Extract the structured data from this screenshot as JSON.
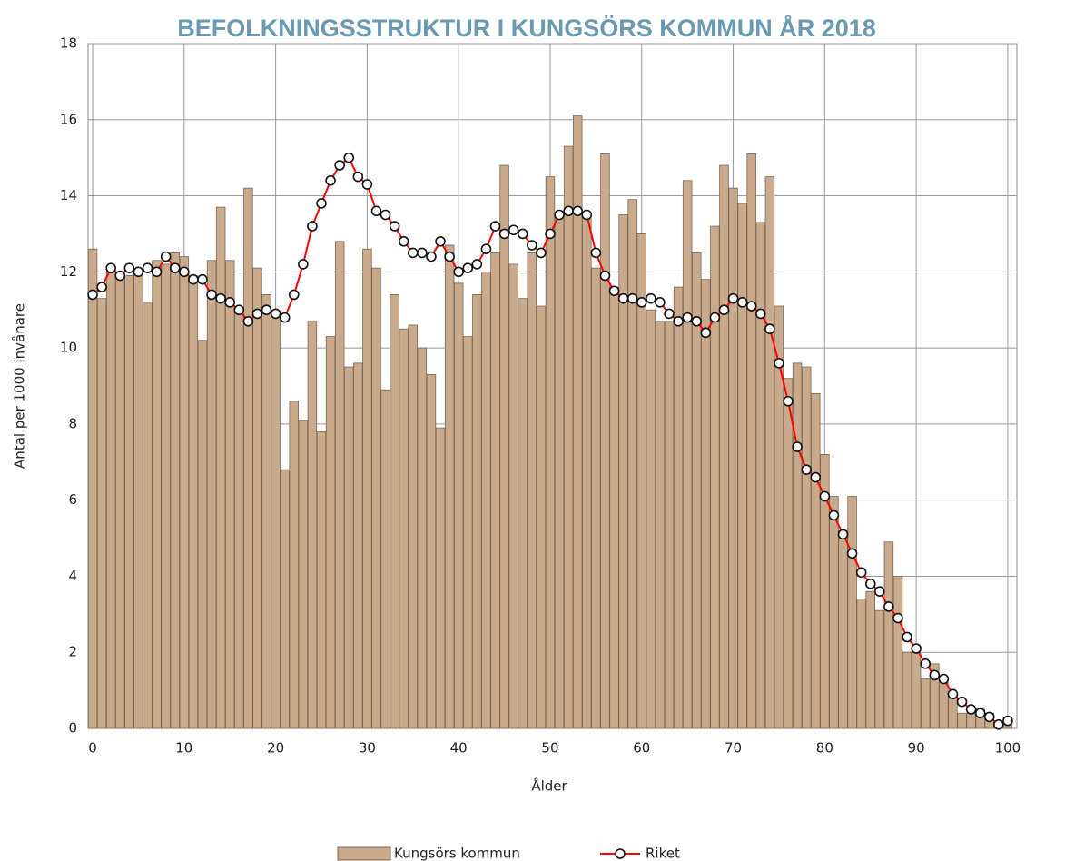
{
  "chart_data": {
    "type": "bar",
    "title": "BEFOLKNINGSSTRUKTUR I KUNGSÖRS KOMMUN ÅR 2018",
    "x_label": "Ålder",
    "y_label": "Antal per 1000 invånare",
    "x": [
      0,
      1,
      2,
      3,
      4,
      5,
      6,
      7,
      8,
      9,
      10,
      11,
      12,
      13,
      14,
      15,
      16,
      17,
      18,
      19,
      20,
      21,
      22,
      23,
      24,
      25,
      26,
      27,
      28,
      29,
      30,
      31,
      32,
      33,
      34,
      35,
      36,
      37,
      38,
      39,
      40,
      41,
      42,
      43,
      44,
      45,
      46,
      47,
      48,
      49,
      50,
      51,
      52,
      53,
      54,
      55,
      56,
      57,
      58,
      59,
      60,
      61,
      62,
      63,
      64,
      65,
      66,
      67,
      68,
      69,
      70,
      71,
      72,
      73,
      74,
      75,
      76,
      77,
      78,
      79,
      80,
      81,
      82,
      83,
      84,
      85,
      86,
      87,
      88,
      89,
      90,
      91,
      92,
      93,
      94,
      95,
      96,
      97,
      98,
      99,
      100
    ],
    "series": [
      {
        "name": "Kungsörs kommun",
        "type": "bar",
        "color": "#c9aa8c",
        "values": [
          12.6,
          11.3,
          12.1,
          12.0,
          11.9,
          12.0,
          11.2,
          12.3,
          12.2,
          12.5,
          12.4,
          11.9,
          10.2,
          12.3,
          13.7,
          12.3,
          11.0,
          14.2,
          12.1,
          11.4,
          10.9,
          6.8,
          8.6,
          8.1,
          10.7,
          7.8,
          10.3,
          12.8,
          9.5,
          9.6,
          12.6,
          12.1,
          8.9,
          11.4,
          10.5,
          10.6,
          10.0,
          9.3,
          7.9,
          12.7,
          11.7,
          10.3,
          11.4,
          12.0,
          12.5,
          14.8,
          12.2,
          11.3,
          12.5,
          11.1,
          14.5,
          13.5,
          15.3,
          16.1,
          13.5,
          12.1,
          15.1,
          11.6,
          13.5,
          13.9,
          13.0,
          11.0,
          10.7,
          10.7,
          11.6,
          14.4,
          12.5,
          11.8,
          13.2,
          14.8,
          14.2,
          13.8,
          15.1,
          13.3,
          14.5,
          11.1,
          9.2,
          9.6,
          9.5,
          8.8,
          7.2,
          6.1,
          5.2,
          6.1,
          3.4,
          3.6,
          3.1,
          4.9,
          4.0,
          2.0,
          2.0,
          1.3,
          1.7,
          1.3,
          0.8,
          0.4,
          0.4,
          0.5,
          0.4,
          0.2,
          0.3
        ]
      },
      {
        "name": "Riket",
        "type": "line",
        "color": "#ff0000",
        "values": [
          11.4,
          11.6,
          12.1,
          11.9,
          12.1,
          12.0,
          12.1,
          12.0,
          12.4,
          12.1,
          12.0,
          11.8,
          11.8,
          11.4,
          11.3,
          11.2,
          11.0,
          10.7,
          10.9,
          11.0,
          10.9,
          10.8,
          11.4,
          12.2,
          13.2,
          13.8,
          14.4,
          14.8,
          15.0,
          14.5,
          14.3,
          13.6,
          13.5,
          13.2,
          12.8,
          12.5,
          12.5,
          12.4,
          12.8,
          12.4,
          12.0,
          12.1,
          12.2,
          12.6,
          13.2,
          13.0,
          13.1,
          13.0,
          12.7,
          12.5,
          13.0,
          13.5,
          13.6,
          13.6,
          13.5,
          12.5,
          11.9,
          11.5,
          11.3,
          11.3,
          11.2,
          11.3,
          11.2,
          10.9,
          10.7,
          10.8,
          10.7,
          10.4,
          10.8,
          11.0,
          11.3,
          11.2,
          11.1,
          10.9,
          10.5,
          9.6,
          8.6,
          7.4,
          6.8,
          6.6,
          6.1,
          5.6,
          5.1,
          4.6,
          4.1,
          3.8,
          3.6,
          3.2,
          2.9,
          2.4,
          2.1,
          1.7,
          1.4,
          1.3,
          0.9,
          0.7,
          0.5,
          0.4,
          0.3,
          0.1,
          0.2
        ]
      }
    ],
    "xlim": [
      -0.5,
      101
    ],
    "xticks": [
      0,
      10,
      20,
      30,
      40,
      50,
      60,
      70,
      80,
      90,
      100
    ],
    "ylim": [
      0,
      18
    ],
    "yticks": [
      0,
      2,
      4,
      6,
      8,
      10,
      12,
      14,
      16,
      18
    ],
    "grid": true,
    "legend": "bottom"
  }
}
